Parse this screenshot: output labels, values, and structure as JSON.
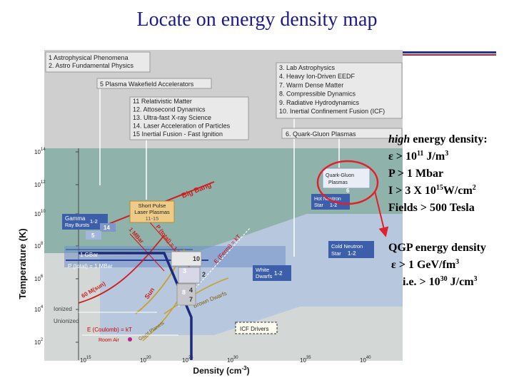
{
  "title": "Locate on energy density map",
  "topics": {
    "group1": [
      "1   Astrophysical Phenomena",
      "2.  Astro Fundamental Physics"
    ],
    "group2": [
      "5   Plasma Wakefield Accelerators"
    ],
    "group3": [
      "11    Relativistic Matter",
      "12.  Attosecond Dynamics",
      "13.  Ultra-fast X-ray Science",
      "14.  Laser Acceleration of Particles",
      "15    Inertial Fusion - Fast Ignition"
    ],
    "group4": [
      "3.   Lab Astrophysics",
      "4.   Heavy Ion-Driven EEDF",
      "7.   Warm Dense Matter",
      "8.   Compressible Dynamics",
      "9.   Radiative Hydrodynamics",
      "10.  Inertial Confinement Fusion (ICF)"
    ],
    "group5": [
      "6.   Quark-Gluon Plasmas"
    ]
  },
  "axes": {
    "ylabel": "Temperature (K)",
    "xlabel": "Density (cm",
    "xlabel_sup": "-3",
    "xlabel_end": ")",
    "yticks": [
      {
        "base": "10",
        "exp": "14"
      },
      {
        "base": "10",
        "exp": "12"
      },
      {
        "base": "10",
        "exp": "10"
      },
      {
        "base": "10",
        "exp": "8"
      },
      {
        "base": "10",
        "exp": "6"
      },
      {
        "base": "10",
        "exp": "4"
      },
      {
        "base": "10",
        "exp": "2"
      }
    ],
    "xticks": [
      {
        "base": "10",
        "exp": "15"
      },
      {
        "base": "10",
        "exp": "20"
      },
      {
        "base": "10",
        "exp": "25"
      },
      {
        "base": "10",
        "exp": "30"
      },
      {
        "base": "10",
        "exp": "35"
      },
      {
        "base": "10",
        "exp": "40"
      }
    ]
  },
  "labels": {
    "quark_gluon_1": "Quark-Gluon",
    "quark_gluon_2": "Plasmas",
    "quark_gluon_num": "6",
    "hot_neutron_1": "Hot Neutron",
    "hot_neutron_2": "Star",
    "hot_neutron_num": "1-2",
    "cold_neutron_1": "Cold Neutron",
    "cold_neutron_2": "Star",
    "cold_neutron_num": "1-2",
    "white_dwarfs_1": "White",
    "white_dwarfs_2": "Dwarfs",
    "white_dwarfs_num": "1-2",
    "gamma_1": "Gamma",
    "gamma_2": "Ray Bursts",
    "gamma_num": "1-2",
    "short_pulse_1": "Short Pulse",
    "short_pulse_2": "Laser Plasmas",
    "short_pulse_num": "11-15",
    "big_bang": "Big Bang",
    "box14": "14",
    "box5": "5",
    "box10": "10",
    "box2": "2",
    "box3": "3",
    "box4": "4",
    "box8": "8",
    "box7": "7",
    "one_mbar": "1 MBar",
    "p_total_1gbar": "P (total) = 1 GBar",
    "one_gbar": "1 GBar",
    "p_total_1mbar": "P (total) = 1 MBar",
    "e_fermi": "E (Fermi) = kT",
    "sixty_m_sun": "60 M(sun)",
    "sun": "Sun",
    "brown_dwarfs": "Brown Dwarfs",
    "ionized": "Ionized",
    "unionized": "Unionized",
    "e_coulomb": "E (Coulomb) = kT",
    "room_air": "Room Air",
    "giant_planets": "Giant Planets",
    "icf_drivers": "ICF Drivers"
  },
  "right_text": {
    "line1_em": "high",
    "line1_rest": " energy density:",
    "line2_pre": "ε > 10",
    "line2_sup": "11",
    "line2_post": " J/m",
    "line2_sup2": "3",
    "line3": "P > 1 Mbar",
    "line4_pre": "I > 3 X 10",
    "line4_sup": "15",
    "line4_post": "W/cm",
    "line4_sup2": "2",
    "line5": "Fields > 500 Tesla",
    "qgp1": "QGP energy density",
    "qgp2_pre": "ε > 1 GeV/fm",
    "qgp2_sup": "3",
    "qgp3_pre": "i.e. > 10",
    "qgp3_sup": "30",
    "qgp3_post": " J/cm",
    "qgp3_sup2": "3"
  },
  "colors": {
    "title": "#1a1a8c",
    "highlight_ellipse": "#e0202a",
    "arrow": "#e0202a",
    "teal_region": "#7fa9a0",
    "blue_region": "#7ea0d8"
  }
}
